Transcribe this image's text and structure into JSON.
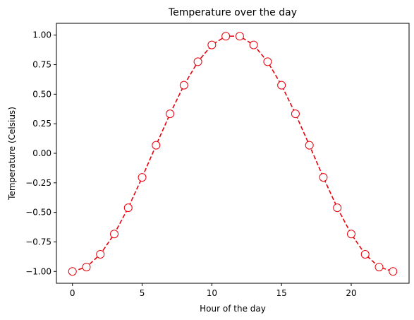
{
  "chart_data": {
    "type": "line",
    "title": "Temperature over the day",
    "xlabel": "Hour of the day",
    "ylabel": "Temperature (Celsius)",
    "xlim": [
      -1.15,
      24.15
    ],
    "ylim": [
      -1.1,
      1.1
    ],
    "x_ticks": [
      0,
      5,
      10,
      15,
      20
    ],
    "y_ticks": [
      -1.0,
      -0.75,
      -0.5,
      -0.25,
      0.0,
      0.25,
      0.5,
      0.75,
      1.0
    ],
    "x_tick_labels": [
      "0",
      "5",
      "10",
      "15",
      "20"
    ],
    "y_tick_labels": [
      "−1.00",
      "−0.75",
      "−0.50",
      "−0.25",
      "0.00",
      "0.25",
      "0.50",
      "0.75",
      "1.00"
    ],
    "grid": false,
    "series": [
      {
        "color": "#e8000b",
        "line_style": "dashed",
        "marker": "circle",
        "marker_face": "#ffffff",
        "x": [
          0,
          1,
          2,
          3,
          4,
          5,
          6,
          7,
          8,
          9,
          10,
          11,
          12,
          13,
          14,
          15,
          16,
          17,
          18,
          19,
          20,
          21,
          22,
          23
        ],
        "y": [
          -1.0,
          -0.963,
          -0.855,
          -0.683,
          -0.461,
          -0.204,
          0.068,
          0.334,
          0.576,
          0.775,
          0.917,
          0.991,
          0.991,
          0.917,
          0.775,
          0.576,
          0.334,
          0.068,
          -0.204,
          -0.461,
          -0.683,
          -0.855,
          -0.963,
          -1.0
        ]
      }
    ]
  }
}
